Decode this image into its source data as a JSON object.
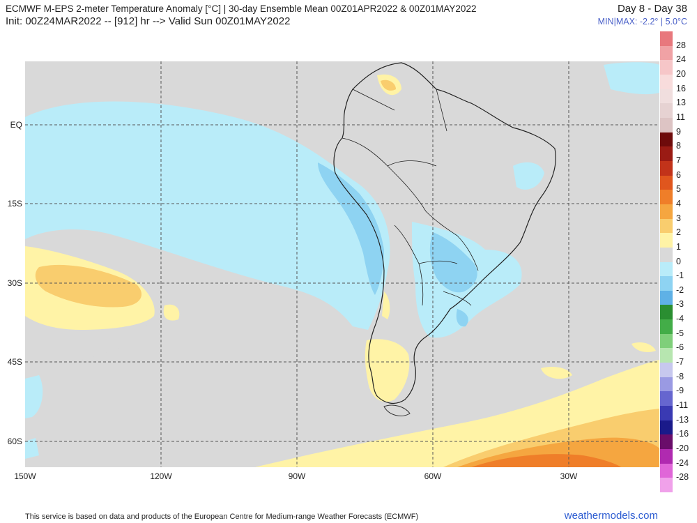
{
  "header": {
    "title": "ECMWF M-EPS 2-meter Temperature Anomaly [°C] | 30-day Ensemble Mean 00Z01APR2022 & 00Z01MAY2022",
    "init_line": "Init: 00Z24MAR2022 -- [912] hr --> Valid Sun 00Z01MAY2022",
    "day_range": "Day 8 - Day 38",
    "minmax": "MIN|MAX: -2.2° | 5.0°C"
  },
  "map": {
    "region": "South America and surrounding oceans",
    "lon_range": [
      -150,
      -20
    ],
    "lat_range": [
      -65,
      13
    ],
    "grid": true,
    "lat_labels": [
      "EQ",
      "15S",
      "30S",
      "45S",
      "60S"
    ],
    "lon_labels": [
      "150W",
      "120W",
      "90W",
      "60W",
      "30W"
    ],
    "features": [
      {
        "name": "Eastern Pacific cool anomaly",
        "level": "0 to -1"
      },
      {
        "name": "Western Andes cool anomaly",
        "level": "-1 to -2"
      },
      {
        "name": "Paraguay / southern Brazil cool anomaly",
        "level": "-1 to -2"
      },
      {
        "name": "Southeast Pacific warm anomaly",
        "level": "1 to 3"
      },
      {
        "name": "Patagonia warm anomaly",
        "level": "0 to 1"
      },
      {
        "name": "South Atlantic warm anomaly",
        "level": "1 to 5"
      }
    ]
  },
  "colorbar": {
    "labels": [
      "28",
      "24",
      "20",
      "16",
      "13",
      "11",
      "9",
      "8",
      "7",
      "6",
      "5",
      "4",
      "3",
      "2",
      "1",
      "0",
      "-1",
      "-2",
      "-3",
      "-4",
      "-5",
      "-6",
      "-7",
      "-8",
      "-9",
      "-11",
      "-13",
      "-16",
      "-20",
      "-24",
      "-28"
    ],
    "colors": [
      "#e8787d",
      "#f0a2a5",
      "#f6c6c8",
      "#f8dcdc",
      "#f0dede",
      "#e6d2d2",
      "#ddc4c4",
      "#6e0b0b",
      "#9a1b14",
      "#c2331a",
      "#e0561e",
      "#ef7e29",
      "#f5a640",
      "#f9cd6e",
      "#fff3a6",
      "#d9d9d9",
      "#b9ecf9",
      "#8ed3f2",
      "#5fb1e6",
      "#2a8e31",
      "#43ad48",
      "#7fcf7a",
      "#b7e6b0",
      "#c7c8ee",
      "#9a9ae3",
      "#6666cf",
      "#3a3ab3",
      "#1a1a8a",
      "#6a0d6a",
      "#b02ab0",
      "#e066d8",
      "#f0a1ea"
    ]
  },
  "footer": {
    "disclaimer": "This service is based on data and products of the European Centre for Medium-range Weather Forecasts (ECMWF)",
    "site": "weathermodels.com"
  }
}
